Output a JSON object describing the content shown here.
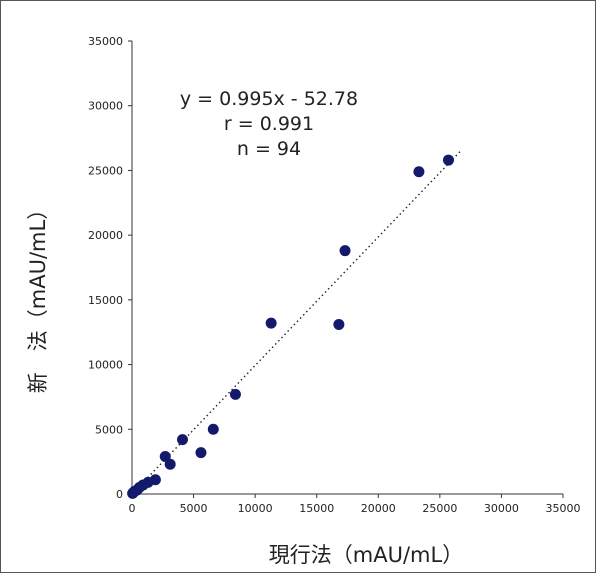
{
  "chart_data": {
    "type": "scatter",
    "title": "",
    "xlabel": "現行法（mAU/mL）",
    "ylabel": "新　法（mAU/mL）",
    "xlim": [
      0,
      35000
    ],
    "ylim": [
      0,
      35000
    ],
    "xticks": [
      "0",
      "5000",
      "10000",
      "15000",
      "20000",
      "25000",
      "30000",
      "35000"
    ],
    "yticks": [
      "0",
      "5000",
      "10000",
      "15000",
      "20000",
      "25000",
      "30000",
      "35000"
    ],
    "annotations": [
      "y = 0.995x - 52.78",
      "r = 0.991",
      "n = 94"
    ],
    "fit_line": {
      "slope": 0.995,
      "intercept": -52.78,
      "style": "dotted"
    },
    "grid": false,
    "legend": "none",
    "marker_color": "#141a6b",
    "points": [
      {
        "x": 25700,
        "y": 25800
      },
      {
        "x": 23300,
        "y": 24900
      },
      {
        "x": 17300,
        "y": 18800
      },
      {
        "x": 11300,
        "y": 13200
      },
      {
        "x": 16800,
        "y": 13100
      },
      {
        "x": 8400,
        "y": 7700
      },
      {
        "x": 6600,
        "y": 5000
      },
      {
        "x": 4100,
        "y": 4200
      },
      {
        "x": 5600,
        "y": 3200
      },
      {
        "x": 2700,
        "y": 2900
      },
      {
        "x": 3100,
        "y": 2300
      },
      {
        "x": 1900,
        "y": 1100
      },
      {
        "x": 1300,
        "y": 900
      },
      {
        "x": 900,
        "y": 700
      },
      {
        "x": 600,
        "y": 500
      },
      {
        "x": 400,
        "y": 300
      },
      {
        "x": 200,
        "y": 200
      },
      {
        "x": 100,
        "y": 100
      },
      {
        "x": 50,
        "y": 50
      }
    ]
  }
}
